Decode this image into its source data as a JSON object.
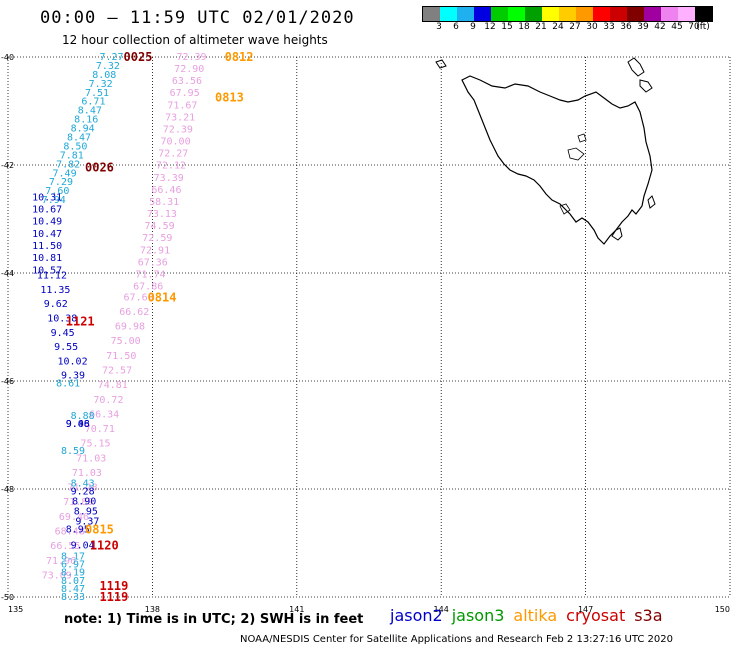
{
  "header": {
    "title": "00:00 – 11:59 UTC 02/01/2020",
    "subtitle": "12 hour collection of altimeter wave heights"
  },
  "legend": {
    "colors": [
      "#808080",
      "#00ffff",
      "#1fb0f0",
      "#0000e0",
      "#00cc00",
      "#00ff00",
      "#00a000",
      "#ffff00",
      "#ffcc00",
      "#ff9900",
      "#ff0000",
      "#cc0000",
      "#800000",
      "#a000a0",
      "#ee82ee",
      "#ffb0ff",
      "#000000"
    ],
    "labels": [
      "3",
      "6",
      "9",
      "12",
      "15",
      "18",
      "21",
      "24",
      "27",
      "30",
      "33",
      "36",
      "39",
      "42",
      "45",
      "70",
      "(ft)"
    ]
  },
  "axes": {
    "x_ticks": [
      "135",
      "138",
      "141",
      "144",
      "147",
      "150"
    ],
    "y_ticks": [
      "-40",
      "-42",
      "-44",
      "-46",
      "-48",
      "-50"
    ]
  },
  "chart_data": {
    "type": "scatter",
    "lon_range": [
      135,
      150
    ],
    "lat_range": [
      -50,
      -40
    ],
    "grid": true,
    "tracks": [
      {
        "color": "#e8a0e0",
        "text_color": "#e8a0e0",
        "lon_start": 138.5,
        "lon_end": 137.6,
        "lat_start": -40.0,
        "lat_end": -44.25,
        "values": [
          "72.39",
          "72.90",
          "63.56",
          "67.95",
          "71.67",
          "73.21",
          "72.39",
          "70.00",
          "72.27",
          "72.12",
          "73.39",
          "66.46",
          "58.31",
          "73.13",
          "74.59",
          "72.59",
          "72.91",
          "67.36",
          "71.74",
          "67.86"
        ]
      },
      {
        "color": "#e8a0e0",
        "text_color": "#e8a0e0",
        "lon_start": 137.4,
        "lon_end": 135.7,
        "lat_start": -44.45,
        "lat_end": -49.6,
        "values": [
          "67.60",
          "66.62",
          "69.98",
          "75.00",
          "71.50",
          "72.57",
          "74.81",
          "70.72",
          "66.34",
          "70.71",
          "75.15",
          "71.03",
          "71.03",
          "71.28",
          "71.89",
          "69.46",
          "68.48",
          "66.55",
          "71.96",
          "73.09"
        ]
      },
      {
        "color": "#20a8d8",
        "text_color": "#20a8d8",
        "lon_start": 136.9,
        "lon_end": 135.7,
        "lat_start": -40.0,
        "lat_end": -42.65,
        "values": [
          "7.27",
          "7.32",
          "8.08",
          "7.32",
          "7.51",
          "6.71",
          "8.47",
          "8.16",
          "8.94",
          "8.47",
          "8.50",
          "7.81",
          "7.82",
          "7.49",
          "7.29",
          "7.60",
          "7.94"
        ]
      },
      {
        "color": "#0000c0",
        "text_color": "#0000c0",
        "lon_start": 135.5,
        "lon_end": 135.5,
        "lat_start": -42.6,
        "lat_end": -43.95,
        "values": [
          "10.31",
          "10.67",
          "10.49",
          "10.47",
          "11.50",
          "10.81",
          "10.57"
        ]
      },
      {
        "color": "#0000c0",
        "text_color": "#0000c0",
        "lon_start": 135.6,
        "lon_end": 136.1,
        "lat_start": -44.05,
        "lat_end": -45.9,
        "values": [
          "11.12",
          "11.35",
          "9.62",
          "10.38",
          "9.45",
          "9.55",
          "10.02",
          "9.39"
        ]
      },
      {
        "color": "#20a8d8",
        "text_color": "#20a8d8",
        "lon_start": 136.0,
        "lon_end": 136.3,
        "lat_start": -46.05,
        "lat_end": -46.65,
        "values": [
          "8.61",
          "8.88"
        ]
      },
      {
        "color": "#0000c0",
        "text_color": "#0000c0",
        "lon_start": 136.2,
        "lon_end": 136.2,
        "lat_start": -46.8,
        "lat_end": -46.8,
        "values": [
          "9.08",
          "9.46"
        ]
      },
      {
        "color": "#20a8d8",
        "text_color": "#20a8d8",
        "lon_start": 136.1,
        "lon_end": 136.3,
        "lat_start": -47.3,
        "lat_end": -47.9,
        "values": [
          "8.59",
          "8.43"
        ]
      },
      {
        "color": "#0000c0",
        "text_color": "#0000c0",
        "lon_start": 136.3,
        "lon_end": 136.4,
        "lat_start": -48.05,
        "lat_end": -48.6,
        "values": [
          "9.28",
          "8.90",
          "8.95",
          "9.37"
        ]
      },
      {
        "color": "#0000c0",
        "text_color": "#0000c0",
        "lon_start": 136.2,
        "lon_end": 136.3,
        "lat_start": -48.75,
        "lat_end": -49.05,
        "values": [
          "8.95",
          "9.04"
        ]
      },
      {
        "color": "#20a8d8",
        "text_color": "#20a8d8",
        "lon_start": 136.1,
        "lon_end": 136.1,
        "lat_start": -49.25,
        "lat_end": -50.0,
        "values": [
          "8.17",
          "6.97",
          "8.19",
          "8.07",
          "8.47",
          "8.33"
        ]
      }
    ],
    "pass_labels": [
      {
        "text": "0025",
        "color": "#800000",
        "lon": 137.4,
        "lat": -40.0
      },
      {
        "text": "0812",
        "color": "#ff9900",
        "lon": 139.5,
        "lat": -40.0
      },
      {
        "text": "0813",
        "color": "#ff9900",
        "lon": 139.3,
        "lat": -40.75
      },
      {
        "text": "0026",
        "color": "#800000",
        "lon": 136.6,
        "lat": -42.05
      },
      {
        "text": "0814",
        "color": "#ff9900",
        "lon": 137.9,
        "lat": -44.45
      },
      {
        "text": "1121",
        "color": "#cc0000",
        "lon": 136.2,
        "lat": -44.9
      },
      {
        "text": "0815",
        "color": "#ff9900",
        "lon": 136.6,
        "lat": -48.75
      },
      {
        "text": "1120",
        "color": "#cc0000",
        "lon": 136.7,
        "lat": -49.05
      },
      {
        "text": "1119",
        "color": "#cc0000",
        "lon": 136.9,
        "lat": -49.8
      },
      {
        "text": "1119",
        "color": "#cc0000",
        "lon": 136.9,
        "lat": -50.0
      }
    ]
  },
  "footer": {
    "note": "note:  1) Time is in UTC;  2) SWH is in feet",
    "satellites": [
      {
        "name": "jason2",
        "color": "#0000cc"
      },
      {
        "name": "jason3",
        "color": "#009900"
      },
      {
        "name": "altika",
        "color": "#ff9900"
      },
      {
        "name": "cryosat",
        "color": "#cc0000"
      },
      {
        "name": "s3a",
        "color": "#800000"
      }
    ],
    "credit": "NOAA/NESDIS Center for Satellite Applications and Research     Feb  2 13:27:16 UTC 2020"
  }
}
